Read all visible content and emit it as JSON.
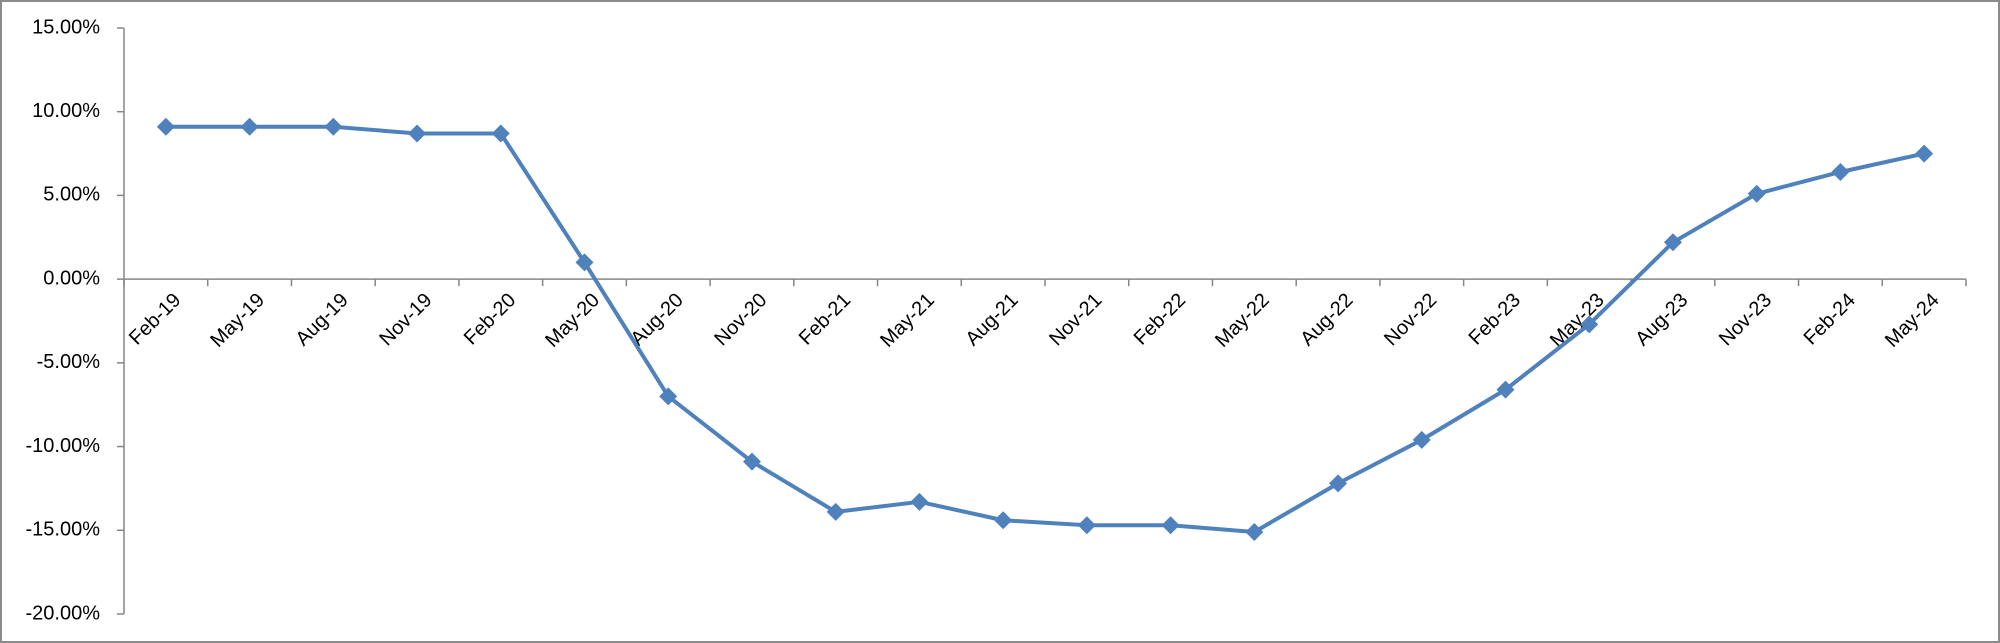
{
  "chart_data": {
    "type": "line",
    "categories": [
      "Feb-19",
      "May-19",
      "Aug-19",
      "Nov-19",
      "Feb-20",
      "May-20",
      "Aug-20",
      "Nov-20",
      "Feb-21",
      "May-21",
      "Aug-21",
      "Nov-21",
      "Feb-22",
      "May-22",
      "Aug-22",
      "Nov-22",
      "Feb-23",
      "May-23",
      "Aug-23",
      "Nov-23",
      "Feb-24",
      "May-24"
    ],
    "series": [
      {
        "color": "#4f81bd",
        "values": [
          9.1,
          9.1,
          9.1,
          8.7,
          8.7,
          1.0,
          -7.0,
          -10.9,
          -13.9,
          -13.3,
          -14.4,
          -14.7,
          -14.7,
          -15.1,
          -12.2,
          -9.6,
          -6.6,
          -2.7,
          2.2,
          5.1,
          6.4,
          7.5
        ]
      }
    ],
    "ylim": [
      -20,
      15
    ],
    "yticks": [
      {
        "value": -20,
        "label": "-20.00%"
      },
      {
        "value": -15,
        "label": "-15.00%"
      },
      {
        "value": -10,
        "label": "-10.00%"
      },
      {
        "value": -5,
        "label": "-5.00%"
      },
      {
        "value": 0,
        "label": "0.00%"
      },
      {
        "value": 5,
        "label": "5.00%"
      },
      {
        "value": 10,
        "label": "10.00%"
      },
      {
        "value": 15,
        "label": "15.00%"
      }
    ],
    "grid": false
  }
}
